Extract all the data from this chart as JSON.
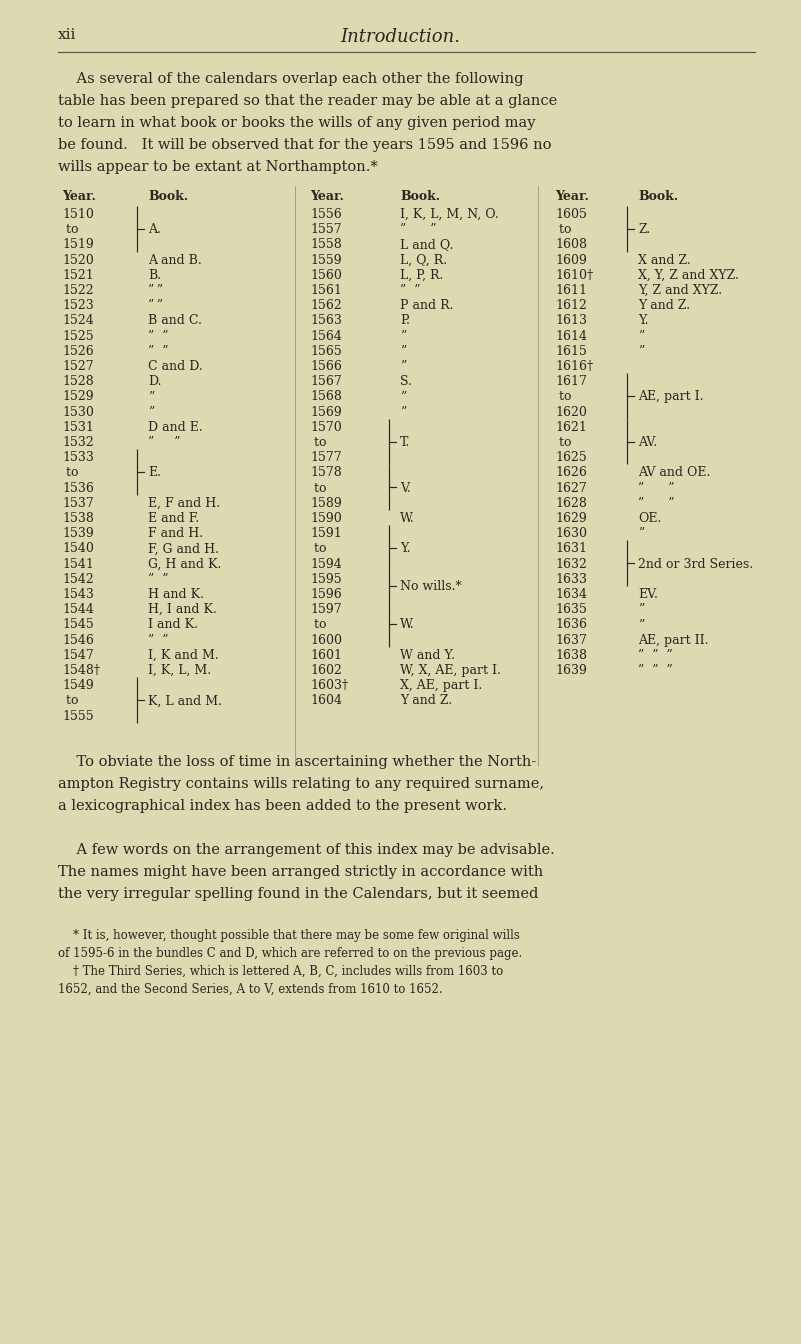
{
  "bg_color": "#ddd9b0",
  "page_number": "xii",
  "header_title": "Introduction.",
  "intro_lines": [
    "    As several of the calendars overlap each other the following",
    "table has been prepared so that the reader may be able at a glance",
    "to learn in what book or books the wills of any given period may",
    "be found.   It will be observed that for the years 1595 and 1596 no",
    "wills appear to be extant at Northampton.*"
  ],
  "outro_lines": [
    "    To obviate the loss of time in ascertaining whether the North-",
    "ampton Registry contains wills relating to any required surname,",
    "a lexicographical index has been added to the present work.",
    "",
    "    A few words on the arrangement of this index may be advisable.",
    "The names might have been arranged strictly in accordance with",
    "the very irregular spelling found in the Calendars, but it seemed"
  ],
  "footnotes": [
    "    * It is, however, thought possible that there may be some few original wills",
    "of 1595-6 in the bundles C and D, which are referred to on the previous page.",
    "    † The Third Series, which is lettered A, B, C, includes wills from 1603 to",
    "1652, and the Second Series, A to V, extends from 1610 to 1652."
  ]
}
